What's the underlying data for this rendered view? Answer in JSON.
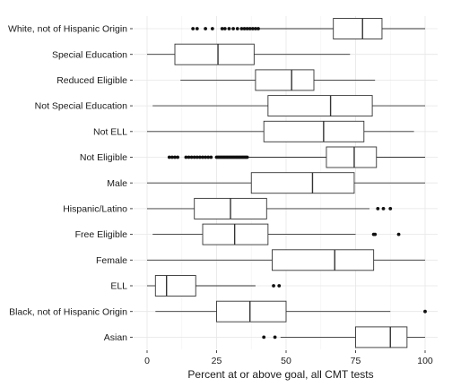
{
  "chart_data": {
    "type": "boxplot",
    "orientation": "horizontal",
    "xlabel": "Percent at or above goal, all CMT tests",
    "ylabel": "",
    "title": "",
    "xlim": [
      0,
      100
    ],
    "xticks": [
      0,
      25,
      50,
      75,
      100
    ],
    "grid": true,
    "categories": [
      "White, not of Hispanic Origin",
      "Special Education",
      "Reduced Eligible",
      "Not Special Education",
      "Not ELL",
      "Not Eligible",
      "Male",
      "Hispanic/Latino",
      "Free Eligible",
      "Female",
      "ELL",
      "Black, not of Hispanic Origin",
      "Asian"
    ],
    "boxes": [
      {
        "min": 40,
        "q1": 67,
        "median": 77.5,
        "q3": 84.5,
        "max": 100,
        "outliers": [
          16.5,
          18,
          21,
          23.5,
          27,
          28,
          29.5,
          31,
          32.5,
          34,
          35,
          36,
          37,
          38,
          39,
          40
        ]
      },
      {
        "min": 0,
        "q1": 10,
        "median": 25.5,
        "q3": 38.5,
        "max": 73,
        "outliers": []
      },
      {
        "min": 12,
        "q1": 39,
        "median": 52,
        "q3": 60,
        "max": 82,
        "outliers": []
      },
      {
        "min": 2,
        "q1": 43.5,
        "median": 66,
        "q3": 81,
        "max": 100,
        "outliers": []
      },
      {
        "min": 0,
        "q1": 42,
        "median": 63.5,
        "q3": 78,
        "max": 96,
        "outliers": []
      },
      {
        "min": 36,
        "q1": 64.5,
        "median": 74.5,
        "q3": 82.5,
        "max": 100,
        "outliers": [
          8,
          9,
          10,
          11,
          14,
          15,
          16,
          17,
          18,
          19,
          20,
          21,
          22,
          23,
          25,
          25.5,
          26,
          26.5,
          27,
          27.5,
          28,
          28.5,
          29,
          29.5,
          30,
          30.5,
          31,
          31.5,
          32,
          32.5,
          33,
          33.5,
          34,
          34.5,
          35,
          35.5,
          36
        ]
      },
      {
        "min": 0,
        "q1": 37.5,
        "median": 59.5,
        "q3": 74.5,
        "max": 100,
        "outliers": []
      },
      {
        "min": 0,
        "q1": 17,
        "median": 30,
        "q3": 43,
        "max": 80,
        "outliers": [
          83,
          85,
          87.5
        ]
      },
      {
        "min": 2,
        "q1": 20,
        "median": 31.5,
        "q3": 43.5,
        "max": 75,
        "outliers": [
          81.5,
          82,
          90.5
        ]
      },
      {
        "min": 0,
        "q1": 45,
        "median": 67.5,
        "q3": 81.5,
        "max": 100,
        "outliers": []
      },
      {
        "min": 0,
        "q1": 3,
        "median": 7,
        "q3": 17.5,
        "max": 39,
        "outliers": [
          45.5,
          47.5
        ]
      },
      {
        "min": 3,
        "q1": 25,
        "median": 37,
        "q3": 50,
        "max": 87.5,
        "outliers": [
          100
        ]
      },
      {
        "min": 48,
        "q1": 75,
        "median": 87.5,
        "q3": 93.5,
        "max": 100,
        "outliers": [
          42,
          46
        ]
      }
    ]
  }
}
